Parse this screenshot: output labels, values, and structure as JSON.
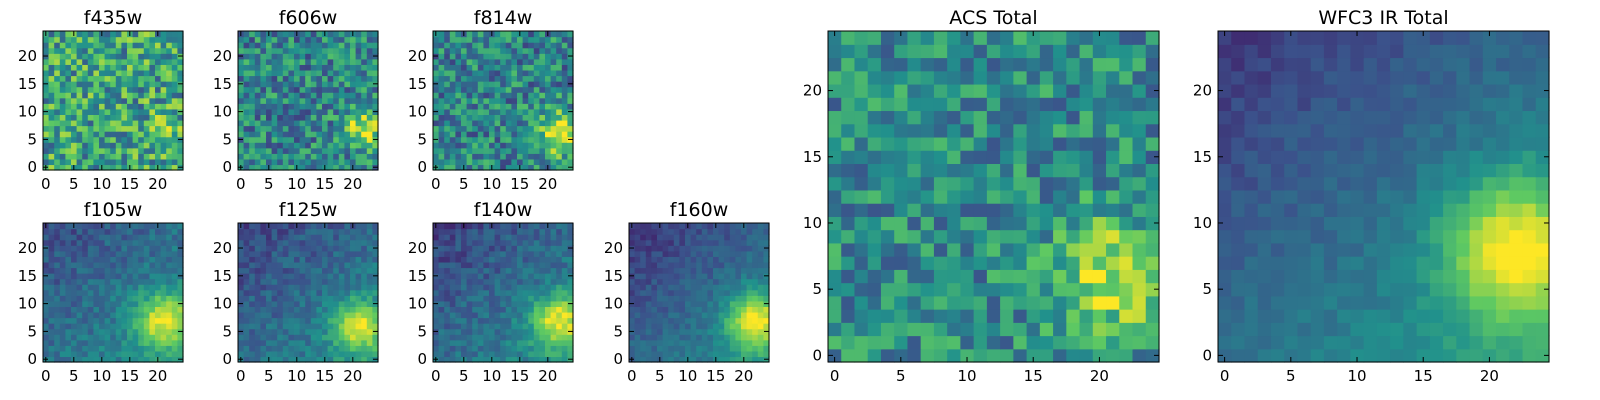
{
  "figure": {
    "colormap": "viridis",
    "colormap_stops": [
      "#440154",
      "#3b528b",
      "#21918c",
      "#5ec962",
      "#fde725"
    ]
  },
  "chart_data": [
    {
      "type": "heatmap",
      "title": "f435w",
      "xlim": [
        0,
        24
      ],
      "ylim": [
        0,
        24
      ],
      "x_ticks": [
        0,
        5,
        10,
        15,
        20
      ],
      "y_ticks": [
        0,
        5,
        10,
        15,
        20
      ],
      "description": "noisy, mostly green-yellow values with scattered dark pixels; faint bright patch near x=20-23, y=5-7",
      "hotspot": {
        "x": 21,
        "y": 6,
        "sigma": 2.0
      },
      "base_level": 0.58,
      "hotspot_amp": 0.25,
      "noise": 0.3,
      "gradient": 0.0
    },
    {
      "type": "heatmap",
      "title": "f606w",
      "xlim": [
        0,
        24
      ],
      "ylim": [
        0,
        24
      ],
      "x_ticks": [
        0,
        5,
        10,
        15,
        20
      ],
      "y_ticks": [
        0,
        5,
        10,
        15,
        20
      ],
      "description": "noisy green field with bright yellow blob at lower right (x~22, y~7)",
      "hotspot": {
        "x": 22,
        "y": 7,
        "sigma": 2.5
      },
      "base_level": 0.45,
      "hotspot_amp": 0.5,
      "noise": 0.25,
      "gradient": 0.0
    },
    {
      "type": "heatmap",
      "title": "f814w",
      "xlim": [
        0,
        24
      ],
      "ylim": [
        0,
        24
      ],
      "x_ticks": [
        0,
        5,
        10,
        15,
        20
      ],
      "y_ticks": [
        0,
        5,
        10,
        15,
        20
      ],
      "description": "noisy green field with bright yellow blob at lower right (x~22, y~6)",
      "hotspot": {
        "x": 22,
        "y": 6,
        "sigma": 2.8
      },
      "base_level": 0.45,
      "hotspot_amp": 0.55,
      "noise": 0.25,
      "gradient": 0.0
    },
    {
      "type": "heatmap",
      "title": "f105w",
      "xlim": [
        0,
        24
      ],
      "ylim": [
        0,
        24
      ],
      "x_ticks": [
        0,
        5,
        10,
        15,
        20
      ],
      "y_ticks": [
        0,
        5,
        10,
        15,
        20
      ],
      "description": "smooth field, dark upper-left, bright yellow source at lower right (x~21, y~7)",
      "hotspot": {
        "x": 21,
        "y": 7,
        "sigma": 3.5
      },
      "base_level": 0.4,
      "hotspot_amp": 0.55,
      "noise": 0.1,
      "gradient": 0.2
    },
    {
      "type": "heatmap",
      "title": "f125w",
      "xlim": [
        0,
        24
      ],
      "ylim": [
        0,
        24
      ],
      "x_ticks": [
        0,
        5,
        10,
        15,
        20
      ],
      "y_ticks": [
        0,
        5,
        10,
        15,
        20
      ],
      "description": "smooth field, dark upper-left, bright source at lower right (x~21, y~6)",
      "hotspot": {
        "x": 21,
        "y": 6,
        "sigma": 3.2
      },
      "base_level": 0.38,
      "hotspot_amp": 0.55,
      "noise": 0.1,
      "gradient": 0.22
    },
    {
      "type": "heatmap",
      "title": "f140w",
      "xlim": [
        0,
        24
      ],
      "ylim": [
        0,
        24
      ],
      "x_ticks": [
        0,
        5,
        10,
        15,
        20
      ],
      "y_ticks": [
        0,
        5,
        10,
        15,
        20
      ],
      "description": "smooth field, dark upper-left, bright source at lower right (x~22, y~7)",
      "hotspot": {
        "x": 22,
        "y": 7,
        "sigma": 3.4
      },
      "base_level": 0.38,
      "hotspot_amp": 0.55,
      "noise": 0.1,
      "gradient": 0.24
    },
    {
      "type": "heatmap",
      "title": "f160w",
      "xlim": [
        0,
        24
      ],
      "ylim": [
        0,
        24
      ],
      "x_ticks": [
        0,
        5,
        10,
        15,
        20
      ],
      "y_ticks": [
        0,
        5,
        10,
        15,
        20
      ],
      "description": "smooth field, dark upper-left, bright source at lower right (x~22, y~7)",
      "hotspot": {
        "x": 22,
        "y": 7,
        "sigma": 3.6
      },
      "base_level": 0.36,
      "hotspot_amp": 0.6,
      "noise": 0.07,
      "gradient": 0.26
    },
    {
      "type": "heatmap",
      "title": "ACS Total",
      "xlim": [
        0,
        24
      ],
      "ylim": [
        0,
        24
      ],
      "x_ticks": [
        0,
        5,
        10,
        15,
        20
      ],
      "y_ticks": [
        0,
        5,
        10,
        15,
        20
      ],
      "description": "noisy teal-green field with bright yellow source at lower right (x~21, y~6) and bright patches near x~20-23, y~18-21",
      "hotspot": {
        "x": 21,
        "y": 6,
        "sigma": 3.0
      },
      "base_level": 0.48,
      "hotspot_amp": 0.45,
      "noise": 0.22,
      "gradient": 0.0
    },
    {
      "type": "heatmap",
      "title": "WFC3 IR Total",
      "xlim": [
        0,
        24
      ],
      "ylim": [
        0,
        24
      ],
      "x_ticks": [
        0,
        5,
        10,
        15,
        20
      ],
      "y_ticks": [
        0,
        5,
        10,
        15,
        20
      ],
      "description": "smooth field, deep purple upper-left and top edge, bright yellow source at lower right (x~22, y~8)",
      "hotspot": {
        "x": 22,
        "y": 8,
        "sigma": 3.8
      },
      "base_level": 0.4,
      "hotspot_amp": 0.58,
      "noise": 0.05,
      "gradient": 0.3
    }
  ]
}
